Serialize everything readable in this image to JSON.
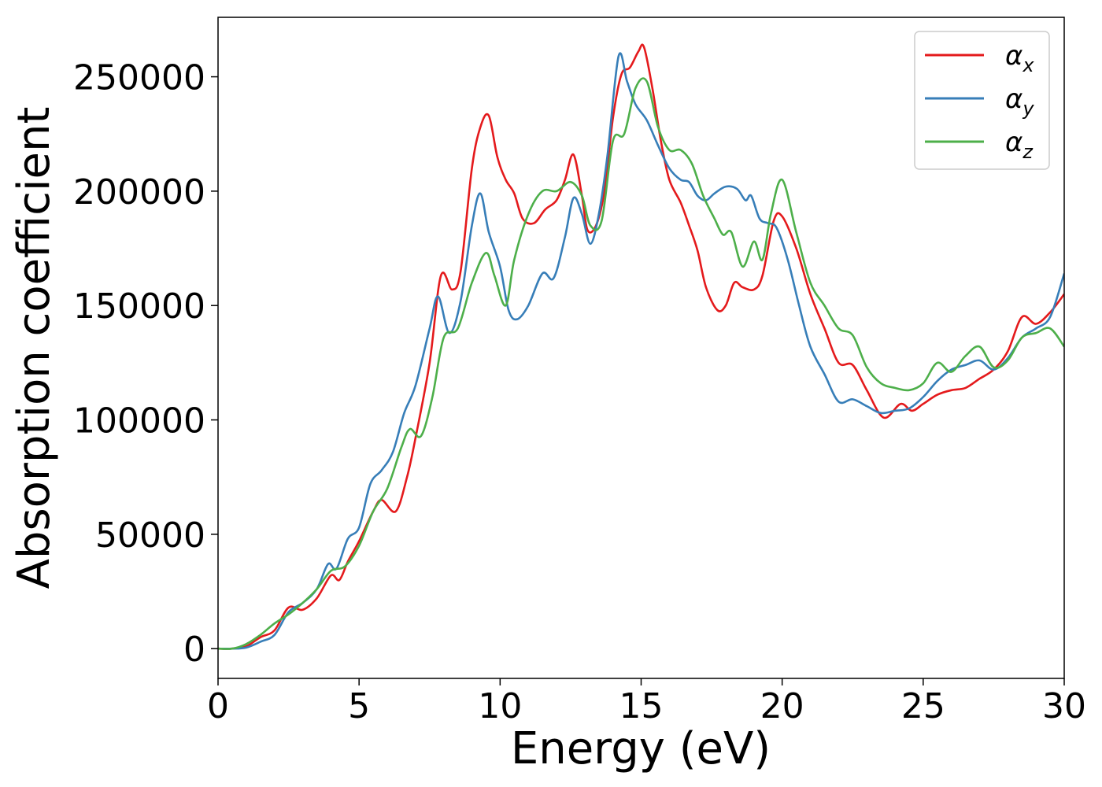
{
  "chart_data": {
    "type": "line",
    "title": "",
    "xlabel": "Energy (eV)",
    "ylabel": "Absorption coefficient",
    "xlim": [
      0,
      30
    ],
    "ylim": [
      -13000,
      276000
    ],
    "xticks": [
      0,
      5,
      10,
      15,
      20,
      25,
      30
    ],
    "xtick_labels": [
      "0",
      "5",
      "10",
      "15",
      "20",
      "25",
      "30"
    ],
    "yticks": [
      0,
      50000,
      100000,
      150000,
      200000,
      250000
    ],
    "ytick_labels": [
      "0",
      "50000",
      "100000",
      "150000",
      "200000",
      "250000"
    ],
    "grid": false,
    "legend_position": "top-right",
    "series": [
      {
        "name": "αx",
        "legend_base": "α",
        "legend_sub": "x",
        "color": "#e41a1c",
        "points": [
          [
            0,
            0
          ],
          [
            0.5,
            0
          ],
          [
            1,
            1000
          ],
          [
            1.5,
            5000
          ],
          [
            2,
            8000
          ],
          [
            2.5,
            18000
          ],
          [
            3,
            17000
          ],
          [
            3.5,
            22000
          ],
          [
            4,
            32000
          ],
          [
            4.3,
            30000
          ],
          [
            4.6,
            38000
          ],
          [
            5,
            47000
          ],
          [
            5.5,
            60000
          ],
          [
            5.8,
            65000
          ],
          [
            6.3,
            60000
          ],
          [
            6.7,
            75000
          ],
          [
            7,
            92000
          ],
          [
            7.5,
            125000
          ],
          [
            7.9,
            163000
          ],
          [
            8.3,
            157000
          ],
          [
            8.6,
            165000
          ],
          [
            9,
            210000
          ],
          [
            9.3,
            228000
          ],
          [
            9.6,
            233000
          ],
          [
            9.9,
            215000
          ],
          [
            10.2,
            205000
          ],
          [
            10.5,
            199000
          ],
          [
            10.8,
            188000
          ],
          [
            11.2,
            186000
          ],
          [
            11.6,
            192000
          ],
          [
            12,
            196000
          ],
          [
            12.3,
            205000
          ],
          [
            12.6,
            216000
          ],
          [
            12.9,
            198000
          ],
          [
            13.1,
            183000
          ],
          [
            13.4,
            185000
          ],
          [
            13.7,
            200000
          ],
          [
            14,
            232000
          ],
          [
            14.3,
            251000
          ],
          [
            14.6,
            254000
          ],
          [
            14.9,
            261000
          ],
          [
            15.1,
            263000
          ],
          [
            15.4,
            245000
          ],
          [
            15.7,
            222000
          ],
          [
            16.0,
            205000
          ],
          [
            16.4,
            195000
          ],
          [
            16.7,
            185000
          ],
          [
            17.0,
            174000
          ],
          [
            17.3,
            158000
          ],
          [
            17.7,
            148000
          ],
          [
            18.0,
            150000
          ],
          [
            18.3,
            160000
          ],
          [
            18.6,
            158000
          ],
          [
            19.0,
            157000
          ],
          [
            19.3,
            163000
          ],
          [
            19.7,
            187000
          ],
          [
            20.0,
            189000
          ],
          [
            20.5,
            175000
          ],
          [
            21.0,
            155000
          ],
          [
            21.5,
            140000
          ],
          [
            22.0,
            125000
          ],
          [
            22.5,
            124000
          ],
          [
            23.0,
            113000
          ],
          [
            23.6,
            101000
          ],
          [
            24.2,
            107000
          ],
          [
            24.6,
            104000
          ],
          [
            25,
            107000
          ],
          [
            25.5,
            111000
          ],
          [
            26,
            113000
          ],
          [
            26.5,
            114000
          ],
          [
            27,
            118000
          ],
          [
            27.5,
            122000
          ],
          [
            28,
            130000
          ],
          [
            28.5,
            145000
          ],
          [
            29,
            142000
          ],
          [
            29.5,
            147000
          ],
          [
            30,
            155000
          ]
        ]
      },
      {
        "name": "αy",
        "legend_base": "α",
        "legend_sub": "y",
        "color": "#377eb8",
        "points": [
          [
            0,
            0
          ],
          [
            0.5,
            0
          ],
          [
            1,
            500
          ],
          [
            1.5,
            3000
          ],
          [
            2,
            6000
          ],
          [
            2.5,
            16000
          ],
          [
            3,
            20000
          ],
          [
            3.5,
            26000
          ],
          [
            3.9,
            37000
          ],
          [
            4.2,
            35000
          ],
          [
            4.6,
            48000
          ],
          [
            5,
            53000
          ],
          [
            5.4,
            72000
          ],
          [
            5.8,
            78000
          ],
          [
            6.2,
            86000
          ],
          [
            6.6,
            103000
          ],
          [
            7,
            115000
          ],
          [
            7.5,
            140000
          ],
          [
            7.8,
            154000
          ],
          [
            8.2,
            138000
          ],
          [
            8.6,
            152000
          ],
          [
            9,
            185000
          ],
          [
            9.3,
            199000
          ],
          [
            9.6,
            182000
          ],
          [
            10,
            167000
          ],
          [
            10.3,
            148000
          ],
          [
            10.6,
            144000
          ],
          [
            11,
            150000
          ],
          [
            11.5,
            164000
          ],
          [
            11.9,
            162000
          ],
          [
            12.3,
            180000
          ],
          [
            12.6,
            197000
          ],
          [
            12.9,
            190000
          ],
          [
            13.2,
            177000
          ],
          [
            13.5,
            190000
          ],
          [
            13.8,
            215000
          ],
          [
            14.2,
            259000
          ],
          [
            14.5,
            248000
          ],
          [
            14.8,
            238000
          ],
          [
            15.2,
            231000
          ],
          [
            15.6,
            220000
          ],
          [
            16.0,
            210000
          ],
          [
            16.4,
            205000
          ],
          [
            16.7,
            204000
          ],
          [
            17.0,
            198000
          ],
          [
            17.3,
            196000
          ],
          [
            17.6,
            199000
          ],
          [
            18.0,
            202000
          ],
          [
            18.4,
            201000
          ],
          [
            18.7,
            196000
          ],
          [
            18.9,
            198000
          ],
          [
            19.2,
            188000
          ],
          [
            19.5,
            186000
          ],
          [
            19.8,
            184000
          ],
          [
            20.2,
            170000
          ],
          [
            20.6,
            150000
          ],
          [
            21.0,
            132000
          ],
          [
            21.5,
            120000
          ],
          [
            22.0,
            108000
          ],
          [
            22.5,
            109000
          ],
          [
            23.0,
            106000
          ],
          [
            23.5,
            103000
          ],
          [
            24,
            104000
          ],
          [
            24.5,
            105000
          ],
          [
            25,
            110000
          ],
          [
            25.5,
            117000
          ],
          [
            26,
            122000
          ],
          [
            26.5,
            124000
          ],
          [
            27,
            126000
          ],
          [
            27.5,
            122000
          ],
          [
            28,
            127000
          ],
          [
            28.5,
            136000
          ],
          [
            29,
            140000
          ],
          [
            29.5,
            145000
          ],
          [
            30,
            164000
          ]
        ]
      },
      {
        "name": "αz",
        "legend_base": "α",
        "legend_sub": "z",
        "color": "#4daf4a",
        "points": [
          [
            0,
            0
          ],
          [
            0.5,
            0
          ],
          [
            1,
            2000
          ],
          [
            1.5,
            6000
          ],
          [
            2,
            11000
          ],
          [
            2.5,
            15000
          ],
          [
            3,
            20000
          ],
          [
            3.5,
            26000
          ],
          [
            4,
            34000
          ],
          [
            4.5,
            36000
          ],
          [
            5,
            45000
          ],
          [
            5.5,
            60000
          ],
          [
            6,
            70000
          ],
          [
            6.5,
            88000
          ],
          [
            6.8,
            96000
          ],
          [
            7.2,
            93000
          ],
          [
            7.6,
            110000
          ],
          [
            8,
            136000
          ],
          [
            8.5,
            140000
          ],
          [
            9,
            160000
          ],
          [
            9.5,
            173000
          ],
          [
            9.8,
            163000
          ],
          [
            10.2,
            150000
          ],
          [
            10.5,
            170000
          ],
          [
            11,
            190000
          ],
          [
            11.5,
            200000
          ],
          [
            12,
            200000
          ],
          [
            12.5,
            204000
          ],
          [
            12.9,
            198000
          ],
          [
            13.2,
            185000
          ],
          [
            13.6,
            187000
          ],
          [
            14,
            222000
          ],
          [
            14.4,
            225000
          ],
          [
            14.8,
            245000
          ],
          [
            15.2,
            248000
          ],
          [
            15.6,
            228000
          ],
          [
            16.0,
            218000
          ],
          [
            16.4,
            218000
          ],
          [
            16.8,
            212000
          ],
          [
            17.2,
            198000
          ],
          [
            17.6,
            188000
          ],
          [
            17.9,
            181000
          ],
          [
            18.2,
            182000
          ],
          [
            18.6,
            167000
          ],
          [
            19.0,
            178000
          ],
          [
            19.3,
            170000
          ],
          [
            19.6,
            190000
          ],
          [
            20.0,
            205000
          ],
          [
            20.5,
            182000
          ],
          [
            21.0,
            160000
          ],
          [
            21.5,
            150000
          ],
          [
            22.0,
            140000
          ],
          [
            22.5,
            137000
          ],
          [
            23.0,
            123000
          ],
          [
            23.5,
            116000
          ],
          [
            24,
            114000
          ],
          [
            24.5,
            113000
          ],
          [
            25,
            116000
          ],
          [
            25.5,
            125000
          ],
          [
            26,
            121000
          ],
          [
            26.5,
            128000
          ],
          [
            27,
            132000
          ],
          [
            27.5,
            123000
          ],
          [
            28,
            126000
          ],
          [
            28.5,
            136000
          ],
          [
            29,
            138000
          ],
          [
            29.5,
            140000
          ],
          [
            30,
            132000
          ]
        ]
      }
    ]
  }
}
